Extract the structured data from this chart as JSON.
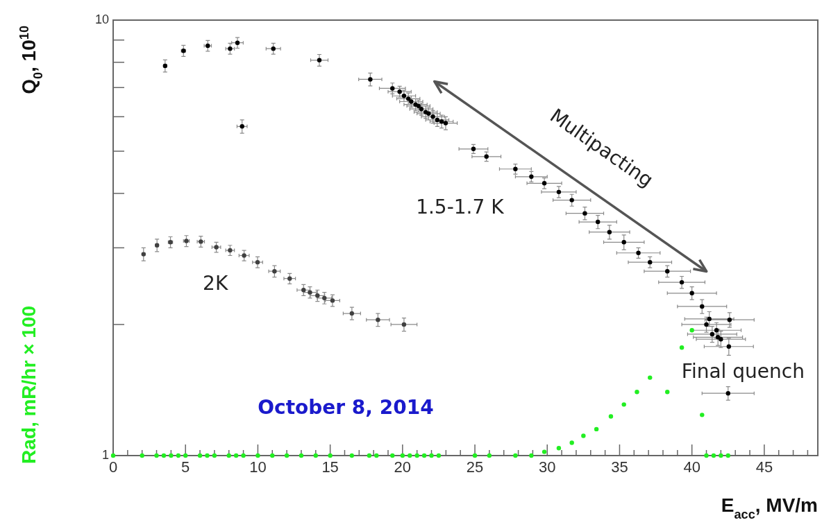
{
  "chart_data": {
    "type": "scatter",
    "xlabel": "E$_{acc}$, MV/m",
    "ylabel": "Q$_{0}$, 10$^{10}$",
    "log": "y",
    "xlim": [
      0,
      48.7
    ],
    "ylim": [
      1,
      10
    ],
    "xticks": [
      0,
      {
        "value": 1,
        "label": null
      },
      {
        "value": 2,
        "label": null
      },
      {
        "value": 3,
        "label": null
      },
      {
        "value": 4,
        "label": null
      },
      5,
      {
        "value": 6,
        "label": null
      },
      {
        "value": 7,
        "label": null
      },
      {
        "value": 8,
        "label": null
      },
      {
        "value": 9,
        "label": null
      },
      10,
      {
        "value": 11,
        "label": null
      },
      {
        "value": 12,
        "label": null
      },
      {
        "value": 13,
        "label": null
      },
      {
        "value": 14,
        "label": null
      },
      15,
      {
        "value": 16,
        "label": null
      },
      {
        "value": 17,
        "label": null
      },
      {
        "value": 18,
        "label": null
      },
      {
        "value": 19,
        "label": null
      },
      20,
      {
        "value": 21,
        "label": null
      },
      {
        "value": 22,
        "label": null
      },
      {
        "value": 23,
        "label": null
      },
      {
        "value": 24,
        "label": null
      },
      25,
      {
        "value": 26,
        "label": null
      },
      {
        "value": 27,
        "label": null
      },
      {
        "value": 28,
        "label": null
      },
      {
        "value": 29,
        "label": null
      },
      30,
      {
        "value": 31,
        "label": null
      },
      {
        "value": 32,
        "label": null
      },
      {
        "value": 33,
        "label": null
      },
      {
        "value": 34,
        "label": null
      },
      35,
      {
        "value": 36,
        "label": null
      },
      {
        "value": 37,
        "label": null
      },
      {
        "value": 38,
        "label": null
      },
      {
        "value": 39,
        "label": null
      },
      40,
      {
        "value": 41,
        "label": null
      },
      {
        "value": 42,
        "label": null
      },
      {
        "value": 43,
        "label": null
      },
      {
        "value": 44,
        "label": null
      },
      45,
      {
        "value": 46,
        "label": null
      },
      {
        "value": 47,
        "label": null
      },
      {
        "value": 48,
        "label": null
      }
    ],
    "yticks": [
      1,
      {
        "value": 2,
        "label": null
      },
      {
        "value": 3,
        "label": null
      },
      {
        "value": 4,
        "label": null
      },
      {
        "value": 5,
        "label": null
      },
      {
        "value": 6,
        "label": null
      },
      {
        "value": 7,
        "label": null
      },
      {
        "value": 8,
        "label": null
      },
      {
        "value": 9,
        "label": null
      },
      10
    ],
    "annotations": [
      "Multipacting",
      "1.5-1.7 K",
      "2K",
      "Final quench",
      "October 8, 2014"
    ],
    "series": [
      {
        "marker": "circle",
        "color": "#404040",
        "x": [
          2.1,
          3.03,
          3.96,
          5.06,
          6.06,
          7.13,
          8.08,
          9.05,
          9.98,
          11.15,
          12.2,
          13.16,
          13.6,
          14.12,
          14.6,
          15.16,
          16.5,
          18.3,
          20.1
        ],
        "values": [
          2.9,
          3.04,
          3.09,
          3.11,
          3.1,
          3.01,
          2.96,
          2.88,
          2.78,
          2.65,
          2.55,
          2.4,
          2.37,
          2.33,
          2.3,
          2.27,
          2.12,
          2.05,
          2.0
        ],
        "errors": [
          0.1,
          0.1,
          0.09,
          0.09,
          0.09,
          0.08,
          0.08,
          0.08,
          0.08,
          0.08,
          0.07,
          0.07,
          0.07,
          0.07,
          0.07,
          0.07,
          0.07,
          0.07,
          0.07
        ],
        "xerrors": [
          0.1,
          0.1,
          0.15,
          0.2,
          0.25,
          0.3,
          0.3,
          0.35,
          0.35,
          0.4,
          0.4,
          0.45,
          0.45,
          0.5,
          0.5,
          0.5,
          0.6,
          0.8,
          0.9
        ]
      },
      {
        "marker": "circle",
        "color": "#000000",
        "x": [
          3.59,
          4.86,
          6.54,
          8.08,
          8.59,
          8.91,
          11.07,
          14.25,
          17.77,
          19.3,
          19.8,
          20.1,
          20.4,
          20.6,
          20.9,
          21.1,
          21.3,
          21.6,
          21.8,
          22.1,
          22.4,
          22.7,
          22.98,
          24.9,
          25.8,
          27.8,
          28.9,
          29.8,
          30.8,
          31.7,
          32.6,
          33.5,
          34.3,
          35.3,
          36.3,
          37.1,
          38.3,
          39.3,
          40.0,
          40.7,
          41.0,
          41.2,
          41.4,
          41.7,
          41.8,
          42.0,
          42.55,
          42.6,
          42.5
        ],
        "values": [
          7.85,
          8.5,
          8.73,
          8.6,
          8.87,
          5.7,
          8.6,
          8.09,
          7.31,
          6.97,
          6.85,
          6.7,
          6.6,
          6.5,
          6.4,
          6.35,
          6.25,
          6.15,
          6.1,
          6.0,
          5.9,
          5.85,
          5.8,
          5.06,
          4.86,
          4.55,
          4.37,
          4.22,
          4.03,
          3.86,
          3.6,
          3.44,
          3.26,
          3.09,
          2.92,
          2.78,
          2.65,
          2.5,
          2.36,
          2.2,
          2.0,
          2.06,
          1.9,
          1.94,
          1.87,
          1.85,
          1.78,
          2.05,
          1.39
        ],
        "errors": [
          0.25,
          0.25,
          0.25,
          0.25,
          0.25,
          0.2,
          0.25,
          0.25,
          0.25,
          0.2,
          0.2,
          0.2,
          0.2,
          0.2,
          0.2,
          0.2,
          0.2,
          0.2,
          0.2,
          0.2,
          0.2,
          0.2,
          0.2,
          0.12,
          0.12,
          0.12,
          0.12,
          0.12,
          0.12,
          0.12,
          0.12,
          0.12,
          0.12,
          0.12,
          0.08,
          0.08,
          0.08,
          0.08,
          0.08,
          0.08,
          0.08,
          0.08,
          0.08,
          0.08,
          0.08,
          0.08,
          0.08,
          0.08,
          0.05
        ],
        "xerrors": [
          0.1,
          0.15,
          0.25,
          0.3,
          0.4,
          0.35,
          0.5,
          0.6,
          0.8,
          0.9,
          0.8,
          0.8,
          0.8,
          0.8,
          0.8,
          0.8,
          0.8,
          0.8,
          0.8,
          0.8,
          0.8,
          0.8,
          0.8,
          1.0,
          1.0,
          1.1,
          1.1,
          1.2,
          1.2,
          1.3,
          1.3,
          1.3,
          1.4,
          1.4,
          1.5,
          1.5,
          1.6,
          1.6,
          1.7,
          1.7,
          1.7,
          1.7,
          1.7,
          1.7,
          1.7,
          1.7,
          1.7,
          1.7,
          1.8
        ]
      },
      {
        "marker": "circle",
        "name": "Rad, mR/hr × 100",
        "color": "#22ee22",
        "x": [
          0,
          2,
          3,
          3.5,
          4,
          4.5,
          5,
          6,
          6.5,
          7,
          8,
          8.5,
          9,
          10,
          11,
          12,
          13,
          14,
          15,
          16.5,
          17.7,
          18.2,
          19.3,
          20,
          20.5,
          21,
          21.5,
          22,
          22.5,
          25,
          26,
          27.8,
          28.9,
          29.8,
          30.8,
          31.7,
          32.5,
          33.4,
          34.4,
          35.3,
          36.2,
          37.1,
          38.3,
          39.3,
          40.0,
          40.7,
          41,
          41.5,
          42,
          42.5
        ],
        "values": [
          1,
          1,
          1,
          1,
          1,
          1,
          1,
          1,
          1,
          1,
          1,
          1,
          1,
          1,
          1,
          1,
          1,
          1,
          1,
          1,
          1,
          1,
          1,
          1,
          1,
          1,
          1,
          1,
          1,
          1,
          1,
          1,
          1,
          1.02,
          1.04,
          1.07,
          1.11,
          1.15,
          1.23,
          1.31,
          1.4,
          1.51,
          1.4,
          1.77,
          1.94,
          1.24,
          1,
          1,
          1,
          1
        ]
      }
    ]
  }
}
